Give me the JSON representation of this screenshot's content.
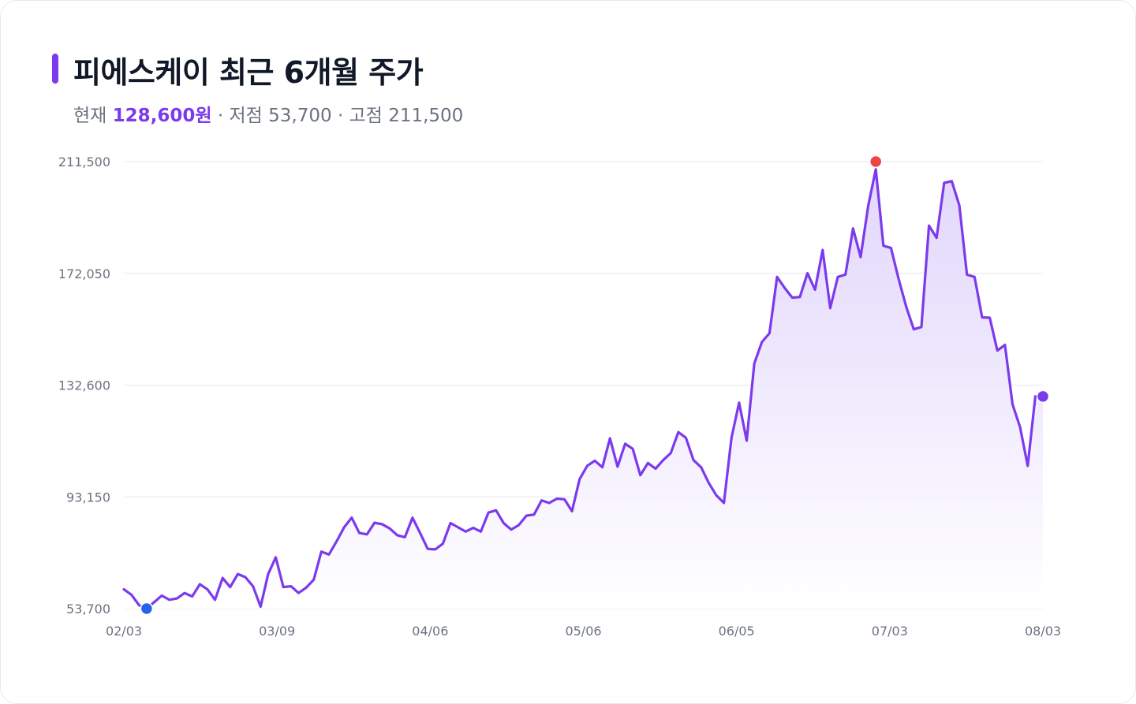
{
  "header": {
    "title": "피에스케이 최근 6개월 주가",
    "current_label": "현재",
    "current_price": "128,600",
    "current_unit": "원",
    "low_text": "· 저점 53,700",
    "high_text": "· 고점 211,500"
  },
  "colors": {
    "line": "#7c3aed",
    "area_top": "#ddd0fb",
    "grid": "#e5e7eb",
    "low_marker": "#2563eb",
    "high_marker": "#ef4444",
    "last_marker": "#7c3aed"
  },
  "chart_data": {
    "type": "area",
    "title": "피에스케이 최근 6개월 주가",
    "xlabel": "",
    "ylabel": "",
    "ylim": [
      53700,
      211500
    ],
    "yticks": [
      53700,
      93150,
      132600,
      172050,
      211500
    ],
    "ytick_labels": [
      "53,700",
      "93,150",
      "132,600",
      "172,050",
      "211,500"
    ],
    "xticks": [
      "02/03",
      "03/09",
      "04/06",
      "05/06",
      "06/05",
      "07/03",
      "08/03"
    ],
    "grid": true,
    "values": [
      60500,
      58600,
      54900,
      53700,
      56000,
      58300,
      56800,
      57300,
      59200,
      58000,
      62300,
      60500,
      56800,
      64500,
      61300,
      65900,
      64800,
      61600,
      54400,
      65900,
      71800,
      61300,
      61600,
      59200,
      61100,
      63900,
      73800,
      72800,
      77400,
      82400,
      85800,
      80400,
      79900,
      84000,
      83500,
      82000,
      79600,
      78900,
      85800,
      80400,
      74800,
      74600,
      76600,
      83900,
      82400,
      80900,
      82200,
      80900,
      87600,
      88400,
      83900,
      81600,
      83200,
      86500,
      86900,
      91900,
      91000,
      92500,
      92300,
      88100,
      99400,
      104100,
      105900,
      103600,
      113800,
      103800,
      111900,
      110100,
      100800,
      105100,
      103100,
      106100,
      108600,
      116000,
      114000,
      106100,
      103600,
      98100,
      93700,
      91000,
      114000,
      126400,
      113000,
      140200,
      147800,
      150900,
      170800,
      166900,
      163500,
      163700,
      172100,
      166300,
      180300,
      159800,
      170800,
      171600,
      187900,
      177800,
      195900,
      208800,
      181800,
      181000,
      170100,
      160300,
      152300,
      153100,
      188900,
      184600,
      204000,
      204600,
      196000,
      171600,
      170800,
      156500,
      156400,
      144800,
      146800,
      125800,
      117700,
      104100,
      128600,
      128600
    ],
    "markers": [
      {
        "name": "low",
        "index": 3,
        "value": 53700
      },
      {
        "name": "high",
        "index": 99,
        "value": 211500
      },
      {
        "name": "last",
        "index": 121,
        "value": 128600
      }
    ]
  }
}
